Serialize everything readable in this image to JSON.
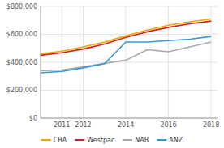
{
  "chart_data": {
    "type": "line",
    "x": [
      2010,
      2011,
      2012,
      2013,
      2014,
      2015,
      2016,
      2017,
      2018
    ],
    "series": [
      {
        "name": "CBA",
        "color": "#f0a500",
        "values": [
          460000,
          480000,
          510000,
          545000,
          590000,
          630000,
          665000,
          690000,
          710000
        ]
      },
      {
        "name": "Westpac",
        "color": "#cc2222",
        "values": [
          450000,
          468000,
          495000,
          530000,
          578000,
          618000,
          650000,
          675000,
          695000
        ]
      },
      {
        "name": "NAB",
        "color": "#aaaaaa",
        "values": [
          340000,
          345000,
          368000,
          392000,
          415000,
          490000,
          475000,
          510000,
          545000
        ]
      },
      {
        "name": "ANZ",
        "color": "#3399dd",
        "values": [
          325000,
          335000,
          360000,
          390000,
          545000,
          545000,
          555000,
          565000,
          585000
        ]
      }
    ],
    "xlim": [
      2010,
      2018.3
    ],
    "xticks": [
      2011,
      2012,
      2014,
      2016,
      2018
    ],
    "ylim": [
      0,
      800000
    ],
    "yticks": [
      {
        "value": 0,
        "label": "$0"
      },
      {
        "value": 200000,
        "label": "$200,000"
      },
      {
        "value": 400000,
        "label": "$400,000"
      },
      {
        "value": 600000,
        "label": "$600,000"
      },
      {
        "value": 800000,
        "label": "$800,000"
      }
    ],
    "grid": true,
    "legend": "bottom"
  }
}
